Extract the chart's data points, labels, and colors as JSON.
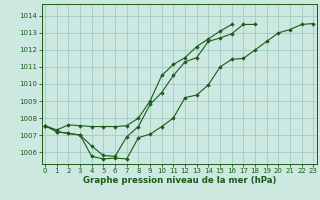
{
  "bg_color": "#cce8e0",
  "grid_color": "#a8d0c8",
  "line_color": "#1a5c1a",
  "marker_color": "#1a5c1a",
  "title": "Graphe pression niveau de la mer (hPa)",
  "title_color": "#1a5c1a",
  "xlim": [
    -0.3,
    23.3
  ],
  "ylim": [
    1005.3,
    1014.7
  ],
  "yticks": [
    1006,
    1007,
    1008,
    1009,
    1010,
    1011,
    1012,
    1013,
    1014
  ],
  "xticks": [
    0,
    1,
    2,
    3,
    4,
    5,
    6,
    7,
    8,
    9,
    10,
    11,
    12,
    13,
    14,
    15,
    16,
    17,
    18,
    19,
    20,
    21,
    22,
    23
  ],
  "series": [
    [
      1007.55,
      1007.2,
      1007.1,
      1007.0,
      1005.75,
      1005.6,
      1005.65,
      1005.6,
      1006.85,
      1007.05,
      1007.5,
      1008.0,
      1009.2,
      1009.35,
      1009.95,
      1011.0,
      1011.45,
      1011.5,
      1012.0,
      1012.5,
      1013.0,
      1013.2,
      1013.5,
      1013.55
    ],
    [
      1007.55,
      1007.2,
      1007.1,
      1007.0,
      1006.35,
      1005.8,
      1005.75,
      1006.9,
      1007.5,
      1008.8,
      1009.5,
      1010.5,
      1011.3,
      1011.55,
      1012.5,
      1012.7,
      1012.95,
      1013.5,
      1013.5
    ],
    [
      1007.55,
      1007.3,
      1007.6,
      1007.55,
      1007.5,
      1007.5,
      1007.5,
      1007.55,
      1008.0,
      1009.0,
      1010.5,
      1011.15,
      1011.55,
      1012.2,
      1012.65,
      1013.1,
      1013.5
    ]
  ],
  "series_x": [
    [
      0,
      1,
      2,
      3,
      4,
      5,
      6,
      7,
      8,
      9,
      10,
      11,
      12,
      13,
      14,
      15,
      16,
      17,
      18,
      19,
      20,
      21,
      22,
      23
    ],
    [
      0,
      1,
      2,
      3,
      4,
      5,
      6,
      7,
      8,
      9,
      10,
      11,
      12,
      13,
      14,
      15,
      16,
      17,
      18
    ],
    [
      0,
      1,
      2,
      3,
      4,
      5,
      6,
      7,
      8,
      9,
      10,
      11,
      12,
      13,
      14,
      15,
      16
    ]
  ],
  "tick_fontsize": 5.0,
  "label_fontsize": 6.2
}
